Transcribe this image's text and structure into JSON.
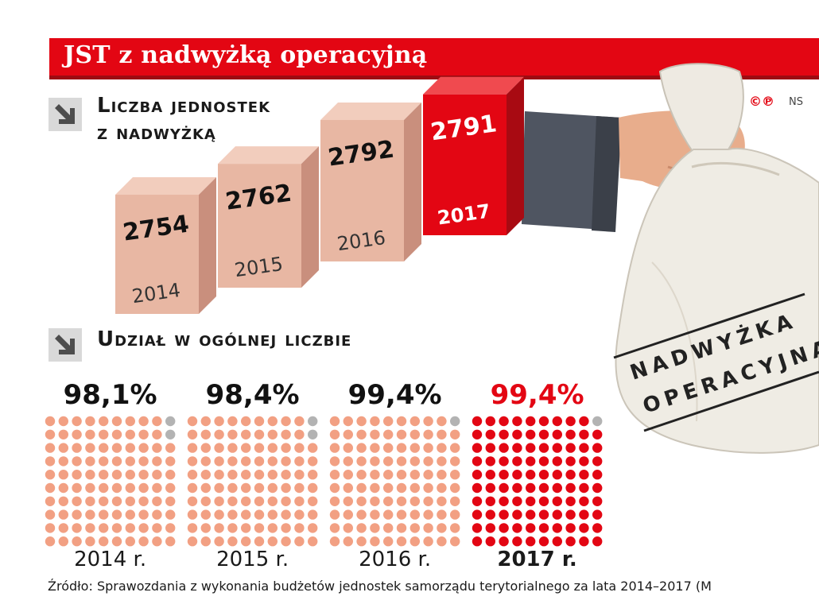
{
  "title": "JST z nadwyżką operacyjną",
  "section1_label_line1": "Liczba jednostek",
  "section1_label_line2": "z nadwyżką",
  "section2_label": "Udział w ogólnej liczbie",
  "copyright_symbols": "©℗",
  "copyright_ns": "NS",
  "bag_text_line1": "NADWYŻKA",
  "bag_text_line2": "OPERACYJNA",
  "source": "Źródło: Sprawozdania z wykonania budżetów jednostek samorządu terytorialnego za lata 2014–2017 (M",
  "colors": {
    "accent_red": "#e30613",
    "box_pink": "#e8b7a3",
    "dot_salmon": "#f2a083",
    "dot_red": "#e30613",
    "dot_grey": "#b3b3b3"
  },
  "icons": [
    "arrow-down-right-icon",
    "arrow-down-right-icon"
  ],
  "chart_data": [
    {
      "type": "bar",
      "categories": [
        "2014",
        "2015",
        "2016",
        "2017"
      ],
      "values": [
        2754,
        2762,
        2792,
        2791
      ],
      "value_labels": [
        "2754",
        "2762",
        "2792",
        "2791"
      ],
      "highlight_category": "2017"
    },
    {
      "type": "bar",
      "categories": [
        "2014 r.",
        "2015 r.",
        "2016 r.",
        "2017 r."
      ],
      "values": [
        98.1,
        98.4,
        99.4,
        99.4
      ],
      "value_labels": [
        "98,1%",
        "98,4%",
        "99,4%",
        "99,4%"
      ],
      "highlight_category": "2017 r."
    }
  ]
}
